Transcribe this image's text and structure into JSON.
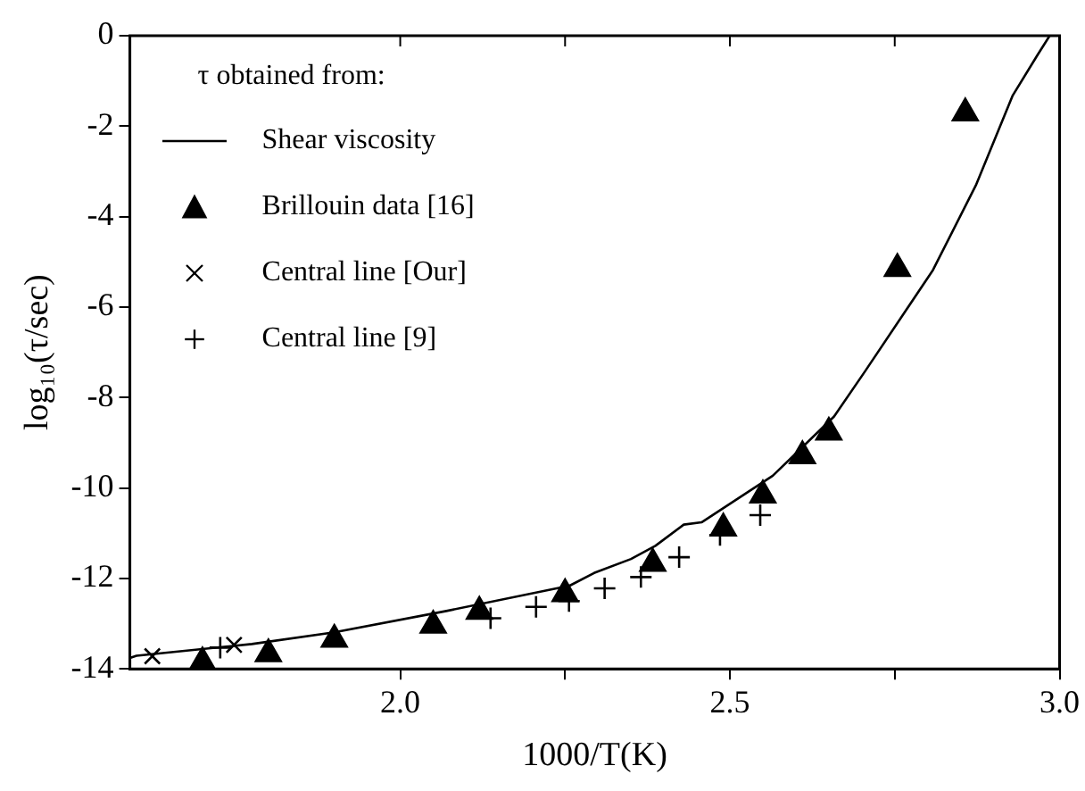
{
  "chart_data": {
    "type": "scatter",
    "xlabel": "1000/T(K)",
    "ylabel": "log₁₀(τ/sec)",
    "legend_title": "τ obtained from:",
    "legend": "top left",
    "grid": false,
    "xlim": [
      1.59,
      3.0
    ],
    "xticks": [
      {
        "value": 2,
        "label": "2.0"
      },
      {
        "value": 2.25,
        "label": null
      },
      {
        "value": 2.5,
        "label": "2.5"
      },
      {
        "value": 2.75,
        "label": null
      },
      {
        "value": 3,
        "label": "3.0"
      }
    ],
    "ylim": [
      -14,
      0
    ],
    "yticks": [
      -14,
      -12,
      -10,
      -8,
      -6,
      -4,
      -2,
      0
    ],
    "series": [
      {
        "name": "Shear viscosity",
        "type": "line",
        "color": "#000000",
        "marker": "none",
        "line_style": "solid",
        "x": [
          1.59,
          1.6,
          1.775,
          1.9,
          2.07,
          2.257,
          2.294,
          2.35,
          2.387,
          2.43,
          2.457,
          2.565,
          2.658,
          2.705,
          2.808,
          2.873,
          2.929,
          2.966,
          2.985
        ],
        "values": [
          -13.76,
          -13.71,
          -13.45,
          -13.19,
          -12.72,
          -12.16,
          -11.88,
          -11.57,
          -11.28,
          -10.81,
          -10.76,
          -9.73,
          -8.42,
          -7.42,
          -5.18,
          -3.31,
          -1.32,
          -0.44,
          0
        ]
      },
      {
        "name": "Brillouin data [16]",
        "type": "scatter",
        "color": "#000000",
        "marker": "triangle",
        "x": [
          1.7,
          1.8,
          1.9,
          2.05,
          2.12,
          2.25,
          2.383,
          2.49,
          2.55,
          2.61,
          2.65,
          2.754,
          2.857
        ],
        "values": [
          -13.85,
          -13.67,
          -13.35,
          -13.04,
          -12.73,
          -12.34,
          -11.67,
          -10.89,
          -10.16,
          -9.29,
          -8.77,
          -5.15,
          -1.71
        ]
      },
      {
        "name": "Central line [Our]",
        "type": "scatter",
        "color": "#000000",
        "marker": "cross",
        "x": [
          1.624,
          1.748
        ],
        "values": [
          -13.72,
          -13.47
        ]
      },
      {
        "name": "Central line [9]",
        "type": "scatter",
        "color": "#000000",
        "marker": "plus",
        "x": [
          1.727,
          2.137,
          2.206,
          2.256,
          2.31,
          2.365,
          2.423,
          2.485,
          2.546
        ],
        "values": [
          -13.53,
          -12.88,
          -12.63,
          -12.5,
          -12.22,
          -11.97,
          -11.53,
          -11.04,
          -10.6
        ]
      }
    ]
  }
}
